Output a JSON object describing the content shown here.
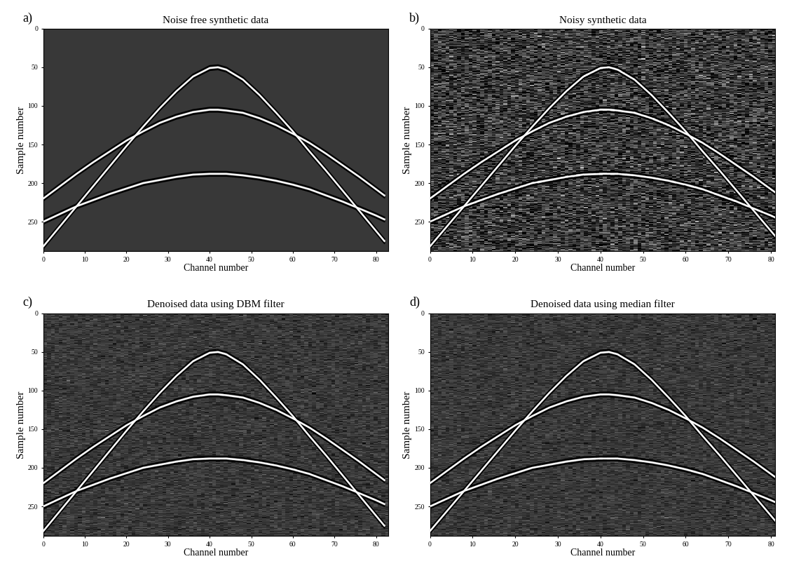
{
  "chart_data": [
    {
      "type": "line",
      "label": "a)",
      "title": "Noise free synthetic data",
      "x_label": "Channel number",
      "y_label": "Sample number",
      "x": [
        0,
        4,
        8,
        12,
        16,
        20,
        24,
        28,
        32,
        36,
        40,
        42,
        44,
        48,
        52,
        56,
        60,
        64,
        68,
        72,
        76,
        80,
        82
      ],
      "series": [
        {
          "color": "#ffffff",
          "values": [
            282,
            256,
            230,
            204,
            178,
            152,
            127,
            103,
            81,
            62,
            51,
            50,
            53,
            66,
            86,
            109,
            133,
            159,
            184,
            210,
            236,
            262,
            275
          ]
        },
        {
          "color": "#ffffff",
          "values": [
            220,
            204,
            188,
            173,
            159,
            145,
            133,
            122,
            114,
            108,
            105,
            105,
            106,
            109,
            116,
            125,
            136,
            148,
            162,
            177,
            192,
            208,
            216
          ]
        },
        {
          "color": "#ffffff",
          "values": [
            250,
            240,
            230,
            222,
            214,
            207,
            200,
            196,
            192,
            189,
            188,
            188,
            188,
            190,
            193,
            197,
            202,
            208,
            216,
            224,
            233,
            242,
            247
          ]
        }
      ],
      "xlim": [
        0,
        83
      ],
      "ylim": [
        288,
        0
      ],
      "xticks": [
        0,
        10,
        20,
        30,
        40,
        50,
        60,
        70,
        80
      ],
      "yticks": [
        0,
        50,
        100,
        150,
        200,
        250
      ]
    },
    {
      "type": "line",
      "label": "b)",
      "title": "Noisy synthetic data",
      "x_label": "Channel number",
      "y_label": "Sample number",
      "x": [
        0,
        4,
        8,
        12,
        16,
        20,
        24,
        28,
        32,
        36,
        40,
        42,
        44,
        48,
        52,
        56,
        60,
        64,
        68,
        72,
        76,
        80,
        82
      ],
      "series": [
        {
          "color": "#ffffff",
          "values": [
            282,
            256,
            230,
            204,
            178,
            152,
            127,
            103,
            81,
            62,
            51,
            50,
            53,
            66,
            86,
            109,
            133,
            159,
            184,
            210,
            236,
            262,
            275
          ]
        },
        {
          "color": "#ffffff",
          "values": [
            220,
            204,
            188,
            173,
            159,
            145,
            133,
            122,
            114,
            108,
            105,
            105,
            106,
            109,
            116,
            125,
            136,
            148,
            162,
            177,
            192,
            208,
            216
          ]
        },
        {
          "color": "#ffffff",
          "values": [
            250,
            240,
            230,
            222,
            214,
            207,
            200,
            196,
            192,
            189,
            188,
            188,
            188,
            190,
            193,
            197,
            202,
            208,
            216,
            224,
            233,
            242,
            247
          ]
        }
      ],
      "xlim": [
        0,
        81
      ],
      "ylim": [
        288,
        0
      ],
      "xticks": [
        0,
        10,
        20,
        30,
        40,
        50,
        60,
        70,
        80
      ],
      "yticks": [
        0,
        50,
        100,
        150,
        200,
        250
      ]
    },
    {
      "type": "line",
      "label": "c)",
      "title": "Denoised data using DBM filter",
      "x_label": "Channel number",
      "y_label": "Sample number",
      "x": [
        0,
        4,
        8,
        12,
        16,
        20,
        24,
        28,
        32,
        36,
        40,
        42,
        44,
        48,
        52,
        56,
        60,
        64,
        68,
        72,
        76,
        80,
        82
      ],
      "series": [
        {
          "color": "#ffffff",
          "values": [
            282,
            256,
            230,
            204,
            178,
            152,
            127,
            103,
            81,
            62,
            51,
            50,
            53,
            66,
            86,
            109,
            133,
            159,
            184,
            210,
            236,
            262,
            275
          ]
        },
        {
          "color": "#ffffff",
          "values": [
            220,
            204,
            188,
            173,
            159,
            145,
            133,
            122,
            114,
            108,
            105,
            105,
            106,
            109,
            116,
            125,
            136,
            148,
            162,
            177,
            192,
            208,
            216
          ]
        },
        {
          "color": "#ffffff",
          "values": [
            250,
            240,
            230,
            222,
            214,
            207,
            200,
            196,
            192,
            189,
            188,
            188,
            188,
            190,
            193,
            197,
            202,
            208,
            216,
            224,
            233,
            242,
            247
          ]
        }
      ],
      "xlim": [
        0,
        83
      ],
      "ylim": [
        288,
        0
      ],
      "xticks": [
        0,
        10,
        20,
        30,
        40,
        50,
        60,
        70,
        80
      ],
      "yticks": [
        0,
        50,
        100,
        150,
        200,
        250
      ]
    },
    {
      "type": "line",
      "label": "d)",
      "title": "Denoised data using median filter",
      "x_label": "Channel number",
      "y_label": "Sample number",
      "x": [
        0,
        4,
        8,
        12,
        16,
        20,
        24,
        28,
        32,
        36,
        40,
        42,
        44,
        48,
        52,
        56,
        60,
        64,
        68,
        72,
        76,
        80,
        82
      ],
      "series": [
        {
          "color": "#ffffff",
          "values": [
            282,
            256,
            230,
            204,
            178,
            152,
            127,
            103,
            81,
            62,
            51,
            50,
            53,
            66,
            86,
            109,
            133,
            159,
            184,
            210,
            236,
            262,
            275
          ]
        },
        {
          "color": "#ffffff",
          "values": [
            220,
            204,
            188,
            173,
            159,
            145,
            133,
            122,
            114,
            108,
            105,
            105,
            106,
            109,
            116,
            125,
            136,
            148,
            162,
            177,
            192,
            208,
            216
          ]
        },
        {
          "color": "#ffffff",
          "values": [
            250,
            240,
            230,
            222,
            214,
            207,
            200,
            196,
            192,
            189,
            188,
            188,
            188,
            190,
            193,
            197,
            202,
            208,
            216,
            224,
            233,
            242,
            247
          ]
        }
      ],
      "xlim": [
        0,
        81
      ],
      "ylim": [
        288,
        0
      ],
      "xticks": [
        0,
        10,
        20,
        30,
        40,
        50,
        60,
        70,
        80
      ],
      "yticks": [
        0,
        50,
        100,
        150,
        200,
        250
      ]
    }
  ]
}
